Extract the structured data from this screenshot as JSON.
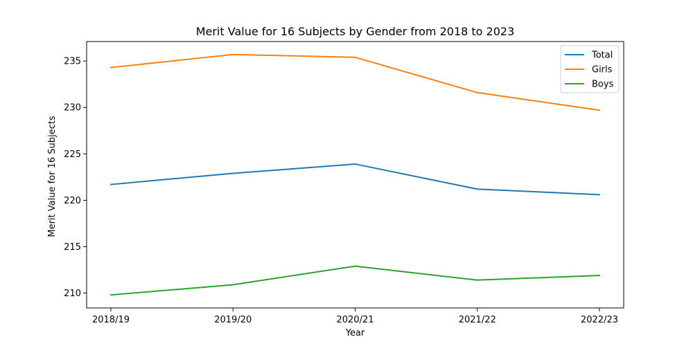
{
  "chart_data": {
    "type": "line",
    "title": "Merit Value for 16 Subjects by Gender from 2018 to 2023",
    "xlabel": "Year",
    "ylabel": "Merit Value for 16 Subjects",
    "categories": [
      "2018/19",
      "2019/20",
      "2020/21",
      "2021/22",
      "2022/23"
    ],
    "ylim": [
      208.4,
      237.1
    ],
    "yticks": [
      210,
      215,
      220,
      225,
      230,
      235
    ],
    "grid": false,
    "legend_position": "top-right",
    "series": [
      {
        "name": "Total",
        "color": "#1f77b4",
        "values": [
          221.7,
          222.9,
          223.9,
          221.2,
          220.6
        ]
      },
      {
        "name": "Girls",
        "color": "#ff7f0e",
        "values": [
          234.3,
          235.7,
          235.4,
          231.6,
          229.7
        ]
      },
      {
        "name": "Boys",
        "color": "#2ca02c",
        "values": [
          209.8,
          210.9,
          212.9,
          211.4,
          211.9
        ]
      }
    ]
  }
}
